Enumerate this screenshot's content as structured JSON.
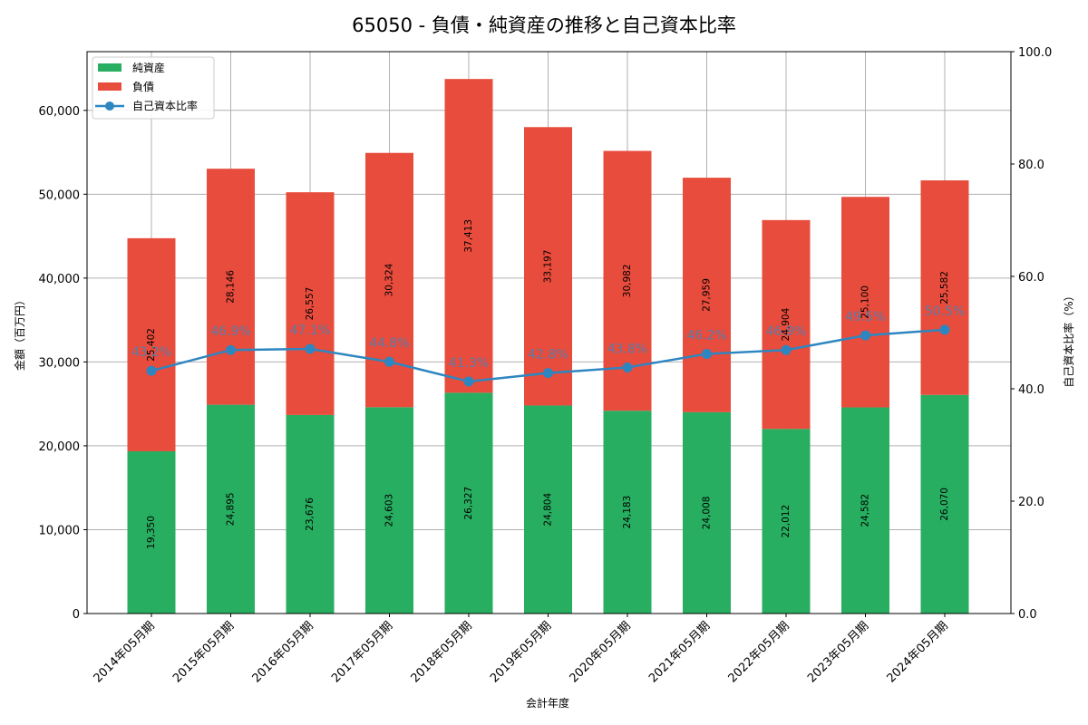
{
  "chart_data": {
    "type": "bar",
    "subtype": "stacked bar + line (dual axis)",
    "title": "65050 - 負債・純資産の推移と自己資本比率",
    "xlabel": "会計年度",
    "ylabel": "金額（百万円）",
    "y2label": "自己資本比率（%）",
    "ylim": [
      0,
      67000
    ],
    "y2lim": [
      0,
      100
    ],
    "yticks": [
      "0",
      "10,000",
      "20,000",
      "30,000",
      "40,000",
      "50,000",
      "60,000"
    ],
    "y2ticks": [
      "0.0",
      "20.0",
      "40.0",
      "60.0",
      "80.0",
      "100.0"
    ],
    "grid": true,
    "legend_position": "upper left",
    "categories": [
      "2014年05月期",
      "2015年05月期",
      "2016年05月期",
      "2017年05月期",
      "2018年05月期",
      "2019年05月期",
      "2020年05月期",
      "2021年05月期",
      "2022年05月期",
      "2023年05月期",
      "2024年05月期"
    ],
    "series": [
      {
        "name": "純資産",
        "type": "bar",
        "stack": "bs",
        "color": "#27ae60",
        "values": [
          19350,
          24895,
          23676,
          24603,
          26327,
          24804,
          24183,
          24008,
          22012,
          24582,
          26070
        ],
        "labels": [
          "19,350",
          "24,895",
          "23,676",
          "24,603",
          "26,327",
          "24,804",
          "24,183",
          "24,008",
          "22,012",
          "24,582",
          "26,070"
        ]
      },
      {
        "name": "負債",
        "type": "bar",
        "stack": "bs",
        "color": "#e74c3c",
        "values": [
          25402,
          28146,
          26557,
          30324,
          37413,
          33197,
          30982,
          27959,
          24904,
          25100,
          25582
        ],
        "labels": [
          "25,402",
          "28,146",
          "26,557",
          "30,324",
          "37,413",
          "33,197",
          "30,982",
          "27,959",
          "24,904",
          "25,100",
          "25,582"
        ]
      },
      {
        "name": "自己資本比率",
        "type": "line",
        "axis": "right",
        "color": "#2e86c1",
        "values": [
          43.2,
          46.9,
          47.1,
          44.8,
          41.3,
          42.8,
          43.8,
          46.2,
          46.9,
          49.5,
          50.5
        ],
        "labels": [
          "43.2%",
          "46.9%",
          "47.1%",
          "44.8%",
          "41.3%",
          "42.8%",
          "43.8%",
          "46.2%",
          "46.9%",
          "49.5%",
          "50.5%"
        ]
      }
    ]
  }
}
